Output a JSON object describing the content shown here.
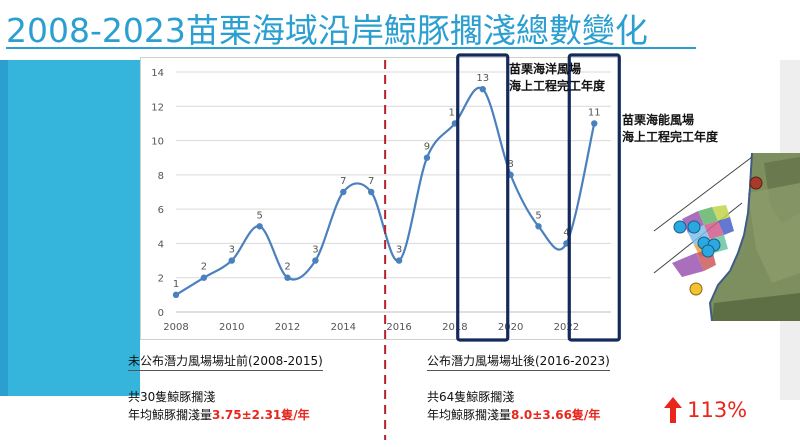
{
  "title": "2008-2023苗栗海域沿岸鯨豚擱淺總數變化",
  "chart_data": {
    "type": "line",
    "x": [
      2008,
      2009,
      2010,
      2011,
      2012,
      2013,
      2014,
      2015,
      2016,
      2017,
      2018,
      2019,
      2020,
      2021,
      2022,
      2023
    ],
    "values": [
      1,
      2,
      3,
      5,
      2,
      3,
      7,
      7,
      3,
      9,
      11,
      13,
      8,
      5,
      4,
      11
    ],
    "x_ticks": [
      2008,
      2010,
      2012,
      2014,
      2016,
      2018,
      2020,
      2022
    ],
    "y_ticks": [
      0,
      2,
      4,
      6,
      8,
      10,
      12,
      14
    ],
    "xlim": [
      2008,
      2023.6
    ],
    "ylim": [
      0,
      14
    ],
    "grid": true,
    "line_color": "#4a80bd",
    "smooth": true
  },
  "divider_year": 2015.5,
  "annotations": [
    {
      "year": 2019,
      "lines": [
        "苗栗海洋風場",
        "海上工程完工年度"
      ]
    },
    {
      "year": 2023,
      "lines": [
        "苗栗海能風場",
        "海上工程完工年度"
      ]
    }
  ],
  "before": {
    "heading": "未公布潛力風場場址前(2008-2015)",
    "total": "共30隻鯨豚擱淺",
    "avg_label": "年均鯨豚擱淺量",
    "avg_value": "3.75±2.31隻/年"
  },
  "after": {
    "heading": "公布潛力風場場址後(2016-2023)",
    "total": "共64隻鯨豚擱淺",
    "avg_label": "年均鯨豚擱淺量",
    "avg_value": "8.0±3.66隻/年"
  },
  "increase": "113%",
  "colors": {
    "title": "#2a9fd0",
    "accent_band": "#35b4dc",
    "highlight_box": "#142a5c",
    "divider": "#b5212a",
    "emphasis": "#e8261c"
  }
}
